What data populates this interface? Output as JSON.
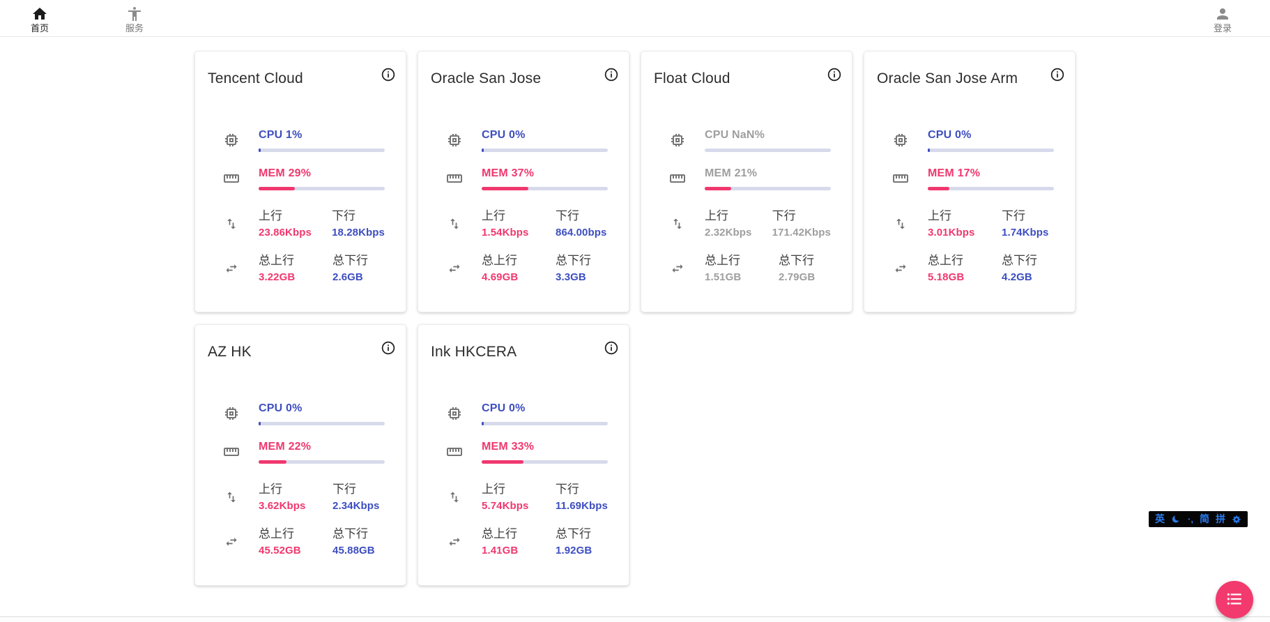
{
  "nav": {
    "home": {
      "label": "首页",
      "icon": "home-icon"
    },
    "services": {
      "label": "服务",
      "icon": "accessibility-icon"
    },
    "login": {
      "label": "登录",
      "icon": "person-icon"
    }
  },
  "stat_labels": {
    "upload": "上行",
    "download": "下行",
    "total_upload": "总上行",
    "total_download": "总下行"
  },
  "colors": {
    "accent_blue": "#3d4ec0",
    "accent_pink": "#f0386e",
    "progress_track": "#d6daeb",
    "offline_gray": "#9e9e9e",
    "fab_pink": "#f23a6e",
    "ime_blue": "#2b7cf0",
    "ime_background": "#060606"
  },
  "servers": [
    {
      "name": "Tencent Cloud",
      "cpu_label": "CPU 1%",
      "cpu_percent": 1,
      "mem_label": "MEM 29%",
      "mem_percent": 29,
      "upload": "23.86Kbps",
      "download": "18.28Kbps",
      "total_upload": "3.22GB",
      "total_download": "2.6GB",
      "offline": false
    },
    {
      "name": "Oracle San Jose",
      "cpu_label": "CPU 0%",
      "cpu_percent": 0,
      "mem_label": "MEM 37%",
      "mem_percent": 37,
      "upload": "1.54Kbps",
      "download": "864.00bps",
      "total_upload": "4.69GB",
      "total_download": "3.3GB",
      "offline": false
    },
    {
      "name": "Float Cloud",
      "cpu_label": "CPU NaN%",
      "cpu_percent": null,
      "mem_label": "MEM 21%",
      "mem_percent": 21,
      "upload": "2.32Kbps",
      "download": "171.42Kbps",
      "total_upload": "1.51GB",
      "total_download": "2.79GB",
      "offline": true
    },
    {
      "name": "Oracle San Jose Arm",
      "cpu_label": "CPU 0%",
      "cpu_percent": 0,
      "mem_label": "MEM 17%",
      "mem_percent": 17,
      "upload": "3.01Kbps",
      "download": "1.74Kbps",
      "total_upload": "5.18GB",
      "total_download": "4.2GB",
      "offline": false
    },
    {
      "name": "AZ HK",
      "cpu_label": "CPU 0%",
      "cpu_percent": 0,
      "mem_label": "MEM 22%",
      "mem_percent": 22,
      "upload": "3.62Kbps",
      "download": "2.34Kbps",
      "total_upload": "45.52GB",
      "total_download": "45.88GB",
      "offline": false
    },
    {
      "name": "Ink HKCERA",
      "cpu_label": "CPU 0%",
      "cpu_percent": 0,
      "mem_label": "MEM 33%",
      "mem_percent": 33,
      "upload": "5.74Kbps",
      "download": "11.69Kbps",
      "total_upload": "1.41GB",
      "total_download": "1.92GB",
      "offline": false
    }
  ],
  "ime": {
    "english_label": "英",
    "moon_icon": "crescent-moon-icon",
    "punctuation_label": "·,",
    "simplified_label": "简",
    "pinyin_label": "拼",
    "gear_icon": "settings-gear-icon"
  },
  "fab": {
    "icon": "list-icon"
  }
}
